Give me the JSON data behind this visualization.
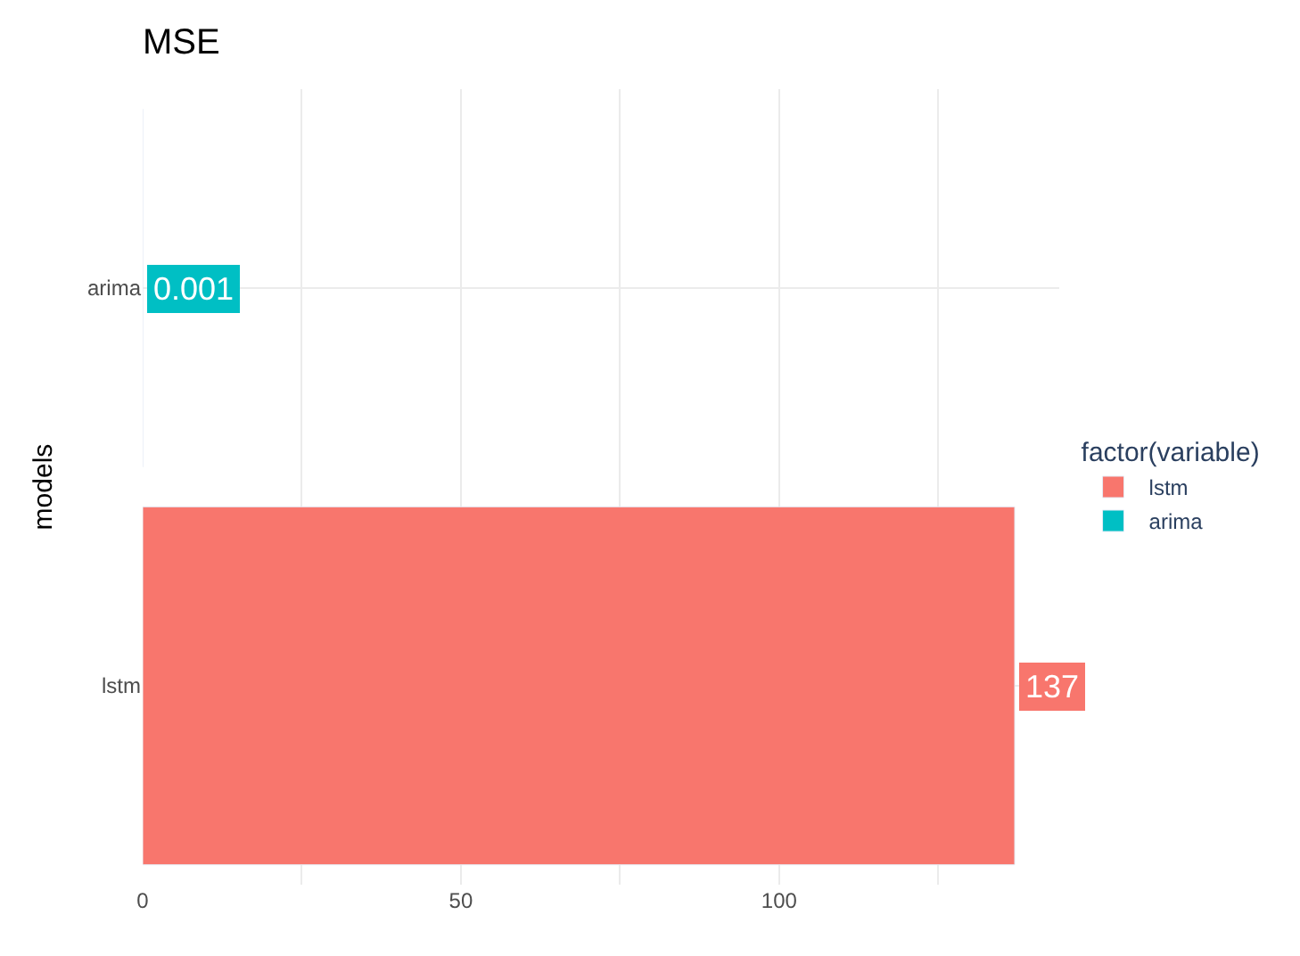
{
  "chart_data": {
    "type": "bar",
    "orientation": "horizontal",
    "title": "MSE",
    "ylabel": "models",
    "legend_title": "factor(variable)",
    "categories": [
      "arima",
      "lstm"
    ],
    "series": [
      {
        "name": "lstm",
        "color": "#f8766d",
        "values": [
          null,
          137
        ],
        "value_labels": [
          null,
          "137"
        ]
      },
      {
        "name": "arima",
        "color": "#00bfc4",
        "values": [
          0.001,
          null
        ],
        "value_labels": [
          "0.001",
          null
        ]
      }
    ],
    "xlim": [
      0,
      144
    ],
    "xticks": [
      0,
      {
        "value": 25,
        "label": null
      },
      50,
      {
        "value": 75,
        "label": null
      },
      100,
      {
        "value": 125,
        "label": null
      }
    ],
    "grid": true,
    "legend": "right"
  }
}
